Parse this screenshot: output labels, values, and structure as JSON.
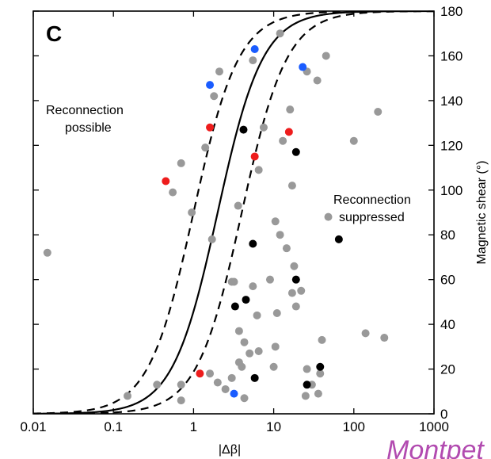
{
  "panel_label": "C",
  "annotations": {
    "possible_line1": "Reconnection",
    "possible_line2": "possible",
    "suppressed_line1": "Reconnection",
    "suppressed_line2": "suppressed"
  },
  "watermark_text": "Montpet",
  "colors": {
    "gray": "#999999",
    "black": "#000000",
    "red": "#ee1c1c",
    "blue": "#1a5cff"
  },
  "chart_data": {
    "type": "scatter",
    "title": "",
    "xlabel": "|Δβ|",
    "ylabel": "Magnetic shear (°)",
    "x_scale": "log",
    "xlim": [
      0.01,
      1000
    ],
    "ylim": [
      0,
      180
    ],
    "x_ticks": [
      0.01,
      0.1,
      1,
      10,
      100,
      1000
    ],
    "x_tick_labels": [
      "0.01",
      "0.1",
      "1",
      "10",
      "100",
      "1000"
    ],
    "y_ticks": [
      0,
      20,
      40,
      60,
      80,
      100,
      120,
      140,
      160,
      180
    ],
    "y_tick_labels": [
      "0",
      "20",
      "40",
      "60",
      "80",
      "100",
      "120",
      "140",
      "160",
      "180"
    ],
    "grid": false,
    "curves": [
      {
        "style": "solid",
        "name": "",
        "x_at_90deg": 2.0
      },
      {
        "style": "dashed",
        "name": "",
        "x_at_90deg": 1.0
      },
      {
        "style": "dashed",
        "name": "",
        "x_at_90deg": 4.0
      }
    ],
    "series": [
      {
        "color": "gray",
        "points": [
          [
            0.015,
            72
          ],
          [
            0.15,
            8
          ],
          [
            0.35,
            13
          ],
          [
            0.7,
            6
          ],
          [
            0.7,
            13
          ],
          [
            0.7,
            112
          ],
          [
            0.55,
            99
          ],
          [
            0.95,
            90
          ],
          [
            1.4,
            119
          ],
          [
            1.7,
            78
          ],
          [
            1.6,
            18
          ],
          [
            2,
            14
          ],
          [
            2.5,
            11
          ],
          [
            3,
            16
          ],
          [
            3,
            59
          ],
          [
            3.2,
            59
          ],
          [
            3.6,
            93
          ],
          [
            3.7,
            37
          ],
          [
            3.7,
            23
          ],
          [
            4,
            21
          ],
          [
            4.3,
            7
          ],
          [
            4.3,
            32
          ],
          [
            5,
            27
          ],
          [
            5.5,
            57
          ],
          [
            6.2,
            44
          ],
          [
            6.5,
            109
          ],
          [
            6.5,
            28
          ],
          [
            7.5,
            128
          ],
          [
            9,
            60
          ],
          [
            10,
            21
          ],
          [
            10.5,
            30
          ],
          [
            10.5,
            86
          ],
          [
            11,
            45
          ],
          [
            12,
            80
          ],
          [
            13,
            122
          ],
          [
            14.5,
            74
          ],
          [
            16,
            136
          ],
          [
            17,
            102
          ],
          [
            17,
            54
          ],
          [
            18,
            66
          ],
          [
            19,
            48
          ],
          [
            22,
            55
          ],
          [
            26,
            20
          ],
          [
            25,
            8
          ],
          [
            30,
            13
          ],
          [
            36,
            9
          ],
          [
            38,
            18
          ],
          [
            40,
            33
          ],
          [
            48,
            88
          ],
          [
            45,
            160
          ],
          [
            35,
            149
          ],
          [
            100,
            122
          ],
          [
            140,
            36
          ],
          [
            200,
            135
          ],
          [
            240,
            34
          ],
          [
            1.8,
            142
          ],
          [
            2.1,
            153
          ],
          [
            5.5,
            158
          ],
          [
            12,
            170
          ],
          [
            26,
            153
          ]
        ]
      },
      {
        "color": "black",
        "points": [
          [
            4.2,
            127
          ],
          [
            19,
            117
          ],
          [
            5.5,
            76
          ],
          [
            65,
            78
          ],
          [
            3.3,
            48
          ],
          [
            4.5,
            51
          ],
          [
            19,
            60
          ],
          [
            5.8,
            16
          ],
          [
            26,
            13
          ],
          [
            38,
            21
          ]
        ]
      },
      {
        "color": "red",
        "points": [
          [
            0.45,
            104
          ],
          [
            1.6,
            128
          ],
          [
            5.8,
            115
          ],
          [
            15.5,
            126
          ],
          [
            1.2,
            18
          ]
        ]
      },
      {
        "color": "blue",
        "points": [
          [
            1.6,
            147
          ],
          [
            5.8,
            163
          ],
          [
            23,
            155
          ],
          [
            3.2,
            9
          ]
        ]
      }
    ]
  }
}
